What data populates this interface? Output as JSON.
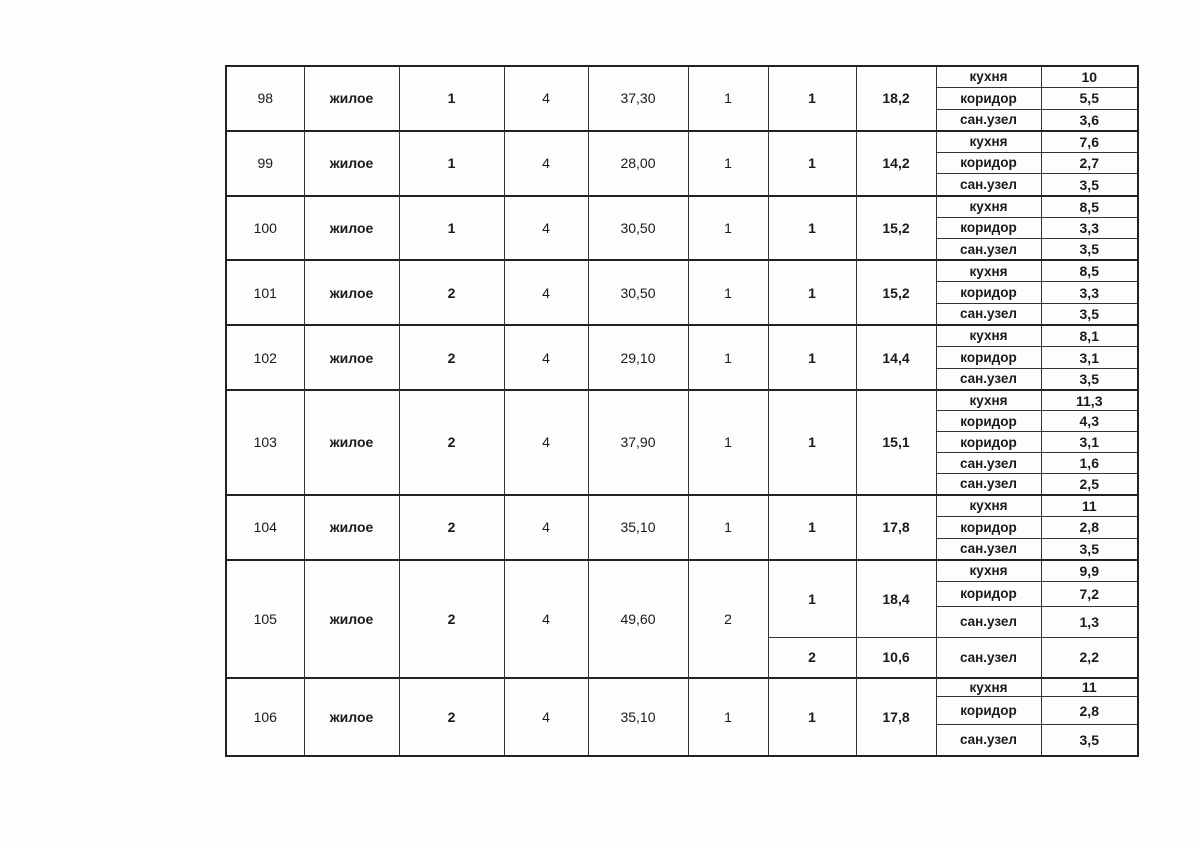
{
  "apartments": [
    {
      "number": "98",
      "type": "жилое",
      "c3": "1",
      "c4": "4",
      "total_area": "37,30",
      "c6": "1",
      "groups": [
        {
          "no": "1",
          "area": "18,2",
          "rooms": [
            {
              "name": "кухня",
              "area": "10"
            },
            {
              "name": "коридор",
              "area": "5,5"
            },
            {
              "name": "сан.узел",
              "area": "3,6"
            }
          ]
        }
      ]
    },
    {
      "number": "99",
      "type": "жилое",
      "c3": "1",
      "c4": "4",
      "total_area": "28,00",
      "c6": "1",
      "groups": [
        {
          "no": "1",
          "area": "14,2",
          "rooms": [
            {
              "name": "кухня",
              "area": "7,6"
            },
            {
              "name": "коридор",
              "area": "2,7"
            },
            {
              "name": "сан.узел",
              "area": "3,5"
            }
          ]
        }
      ]
    },
    {
      "number": "100",
      "type": "жилое",
      "c3": "1",
      "c4": "4",
      "total_area": "30,50",
      "c6": "1",
      "groups": [
        {
          "no": "1",
          "area": "15,2",
          "rooms": [
            {
              "name": "кухня",
              "area": "8,5"
            },
            {
              "name": "коридор",
              "area": "3,3"
            },
            {
              "name": "сан.узел",
              "area": "3,5"
            }
          ]
        }
      ]
    },
    {
      "number": "101",
      "type": "жилое",
      "c3": "2",
      "c4": "4",
      "total_area": "30,50",
      "c6": "1",
      "groups": [
        {
          "no": "1",
          "area": "15,2",
          "rooms": [
            {
              "name": "кухня",
              "area": "8,5"
            },
            {
              "name": "коридор",
              "area": "3,3"
            },
            {
              "name": "сан.узел",
              "area": "3,5"
            }
          ]
        }
      ]
    },
    {
      "number": "102",
      "type": "жилое",
      "c3": "2",
      "c4": "4",
      "total_area": "29,10",
      "c6": "1",
      "groups": [
        {
          "no": "1",
          "area": "14,4",
          "rooms": [
            {
              "name": "кухня",
              "area": "8,1"
            },
            {
              "name": "коридор",
              "area": "3,1"
            },
            {
              "name": "сан.узел",
              "area": "3,5"
            }
          ]
        }
      ]
    },
    {
      "number": "103",
      "type": "жилое",
      "c3": "2",
      "c4": "4",
      "total_area": "37,90",
      "c6": "1",
      "groups": [
        {
          "no": "1",
          "area": "15,1",
          "rooms": [
            {
              "name": "кухня",
              "area": "11,3"
            },
            {
              "name": "коридор",
              "area": "4,3"
            },
            {
              "name": "коридор",
              "area": "3,1"
            },
            {
              "name": "сан.узел",
              "area": "1,6"
            },
            {
              "name": "сан.узел",
              "area": "2,5"
            }
          ]
        }
      ]
    },
    {
      "number": "104",
      "type": "жилое",
      "c3": "2",
      "c4": "4",
      "total_area": "35,10",
      "c6": "1",
      "groups": [
        {
          "no": "1",
          "area": "17,8",
          "rooms": [
            {
              "name": "кухня",
              "area": "11"
            },
            {
              "name": "коридор",
              "area": "2,8"
            },
            {
              "name": "сан.узел",
              "area": "3,5"
            }
          ]
        }
      ]
    },
    {
      "number": "105",
      "type": "жилое",
      "c3": "2",
      "c4": "4",
      "total_area": "49,60",
      "c6": "2",
      "groups": [
        {
          "no": "1",
          "area": "18,4",
          "rooms": [
            {
              "name": "кухня",
              "area": "9,9"
            },
            {
              "name": "коридор",
              "area": "7,2"
            },
            {
              "name": "сан.узел",
              "area": "1,3"
            }
          ]
        },
        {
          "no": "2",
          "area": "10,6",
          "rooms": [
            {
              "name": "сан.узел",
              "area": "2,2"
            }
          ]
        }
      ]
    },
    {
      "number": "106",
      "type": "жилое",
      "c3": "2",
      "c4": "4",
      "total_area": "35,10",
      "c6": "1",
      "groups": [
        {
          "no": "1",
          "area": "17,8",
          "rooms": [
            {
              "name": "кухня",
              "area": "11"
            },
            {
              "name": "коридор",
              "area": "2,8"
            },
            {
              "name": "сан.узел",
              "area": "3,5"
            }
          ]
        }
      ]
    }
  ]
}
